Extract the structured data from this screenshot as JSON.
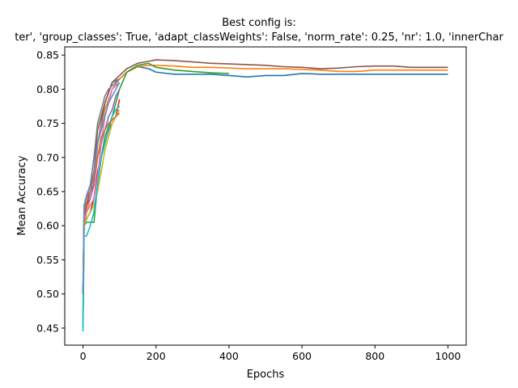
{
  "chart_data": {
    "type": "line",
    "title": "Best config is:",
    "subtitle": "ter', 'group_classes': True, 'adapt_classWeights': False, 'norm_rate': 0.25, 'nr': 1.0, 'innerChar",
    "xlabel": "Epochs",
    "ylabel": "Mean Accuracy",
    "xlim": [
      -50,
      1050
    ],
    "ylim": [
      0.425,
      0.862
    ],
    "xticks": [
      0,
      200,
      400,
      600,
      800,
      1000
    ],
    "yticks": [
      0.45,
      0.5,
      0.55,
      0.6,
      0.65,
      0.7,
      0.75,
      0.8,
      0.85
    ],
    "grid": false,
    "series": [
      {
        "color": "#1f77b4",
        "x": [
          0,
          2,
          3,
          10,
          20,
          30,
          40,
          60,
          80,
          100,
          120,
          150,
          180,
          200,
          250,
          300,
          350,
          400,
          450,
          500,
          550,
          600,
          650,
          700,
          750,
          800,
          850,
          900,
          950,
          1000
        ],
        "values": [
          0.45,
          0.59,
          0.63,
          0.64,
          0.65,
          0.66,
          0.72,
          0.78,
          0.81,
          0.815,
          0.825,
          0.833,
          0.83,
          0.825,
          0.822,
          0.822,
          0.822,
          0.82,
          0.818,
          0.82,
          0.82,
          0.823,
          0.822,
          0.822,
          0.822,
          0.822,
          0.822,
          0.822,
          0.822,
          0.822
        ]
      },
      {
        "color": "#ff7f0e",
        "x": [
          0,
          3,
          10,
          20,
          30,
          40,
          60,
          80,
          100,
          120,
          150,
          180,
          200,
          250,
          300,
          350,
          400,
          450,
          500,
          550,
          600,
          650,
          700,
          750,
          800,
          850,
          900,
          950,
          1000
        ],
        "values": [
          0.47,
          0.6,
          0.62,
          0.64,
          0.66,
          0.72,
          0.77,
          0.8,
          0.815,
          0.825,
          0.833,
          0.835,
          0.835,
          0.834,
          0.832,
          0.832,
          0.831,
          0.83,
          0.83,
          0.83,
          0.829,
          0.828,
          0.826,
          0.826,
          0.828,
          0.828,
          0.828,
          0.828,
          0.828
        ]
      },
      {
        "color": "#2ca02c",
        "x": [
          0,
          3,
          10,
          20,
          30,
          40,
          50,
          60,
          80,
          100,
          120,
          150,
          180,
          200,
          250,
          300,
          350,
          400
        ],
        "values": [
          0.46,
          0.6,
          0.605,
          0.605,
          0.605,
          0.66,
          0.7,
          0.73,
          0.76,
          0.8,
          0.825,
          0.835,
          0.838,
          0.832,
          0.828,
          0.826,
          0.824,
          0.823
        ]
      },
      {
        "color": "#d62728",
        "x": [
          0,
          3,
          10,
          20,
          30,
          40,
          50,
          60,
          70,
          80,
          90,
          100
        ],
        "values": [
          0.5,
          0.6,
          0.61,
          0.62,
          0.64,
          0.68,
          0.7,
          0.72,
          0.74,
          0.75,
          0.76,
          0.785
        ]
      },
      {
        "color": "#9467bd",
        "x": [
          0,
          3,
          10,
          20,
          30,
          40,
          50,
          60,
          70,
          80,
          90,
          100
        ],
        "values": [
          0.5,
          0.62,
          0.63,
          0.64,
          0.66,
          0.7,
          0.72,
          0.74,
          0.76,
          0.77,
          0.79,
          0.8
        ]
      },
      {
        "color": "#8c564b",
        "x": [
          0,
          3,
          10,
          20,
          30,
          40,
          60,
          80,
          100,
          120,
          150,
          180,
          200,
          250,
          300,
          350,
          400,
          450,
          500,
          550,
          600,
          650,
          700,
          750,
          800,
          850,
          900,
          950,
          1000
        ],
        "values": [
          0.5,
          0.61,
          0.63,
          0.65,
          0.68,
          0.74,
          0.78,
          0.81,
          0.82,
          0.83,
          0.838,
          0.841,
          0.843,
          0.842,
          0.84,
          0.838,
          0.837,
          0.836,
          0.835,
          0.833,
          0.832,
          0.83,
          0.831,
          0.833,
          0.834,
          0.834,
          0.832,
          0.832,
          0.832
        ]
      },
      {
        "color": "#e377c2",
        "x": [
          0,
          3,
          10,
          20,
          30,
          40,
          50,
          60,
          70,
          80,
          90,
          100
        ],
        "values": [
          0.5,
          0.61,
          0.62,
          0.63,
          0.64,
          0.67,
          0.72,
          0.76,
          0.78,
          0.8,
          0.805,
          0.81
        ]
      },
      {
        "color": "#7f7f7f",
        "x": [
          0,
          3,
          10,
          20,
          30,
          40,
          50,
          60,
          70,
          80,
          90,
          100
        ],
        "values": [
          0.5,
          0.62,
          0.64,
          0.66,
          0.7,
          0.75,
          0.77,
          0.79,
          0.8,
          0.805,
          0.81,
          0.815
        ]
      },
      {
        "color": "#bcbd22",
        "x": [
          0,
          3,
          10,
          20,
          30,
          40,
          50,
          60,
          70,
          80,
          90,
          100
        ],
        "values": [
          0.5,
          0.6,
          0.61,
          0.62,
          0.63,
          0.65,
          0.68,
          0.71,
          0.73,
          0.75,
          0.76,
          0.77
        ]
      },
      {
        "color": "#17becf",
        "x": [
          0,
          3,
          10,
          20,
          30,
          40,
          50,
          60,
          70,
          80,
          90,
          100
        ],
        "values": [
          0.445,
          0.585,
          0.585,
          0.6,
          0.62,
          0.66,
          0.7,
          0.72,
          0.74,
          0.76,
          0.77,
          0.775
        ]
      },
      {
        "color": "#e06c2d",
        "x": [
          0,
          3,
          10,
          20,
          30,
          40,
          50,
          60,
          70,
          80,
          90,
          100
        ],
        "values": [
          0.5,
          0.62,
          0.64,
          0.65,
          0.67,
          0.7,
          0.73,
          0.74,
          0.75,
          0.755,
          0.76,
          0.765
        ]
      },
      {
        "color": "#5b8fd6",
        "x": [
          0,
          3,
          10,
          20,
          30,
          40,
          50,
          60,
          70,
          80,
          90,
          100
        ],
        "values": [
          0.5,
          0.63,
          0.645,
          0.66,
          0.68,
          0.72,
          0.74,
          0.76,
          0.78,
          0.79,
          0.8,
          0.81
        ]
      }
    ]
  }
}
